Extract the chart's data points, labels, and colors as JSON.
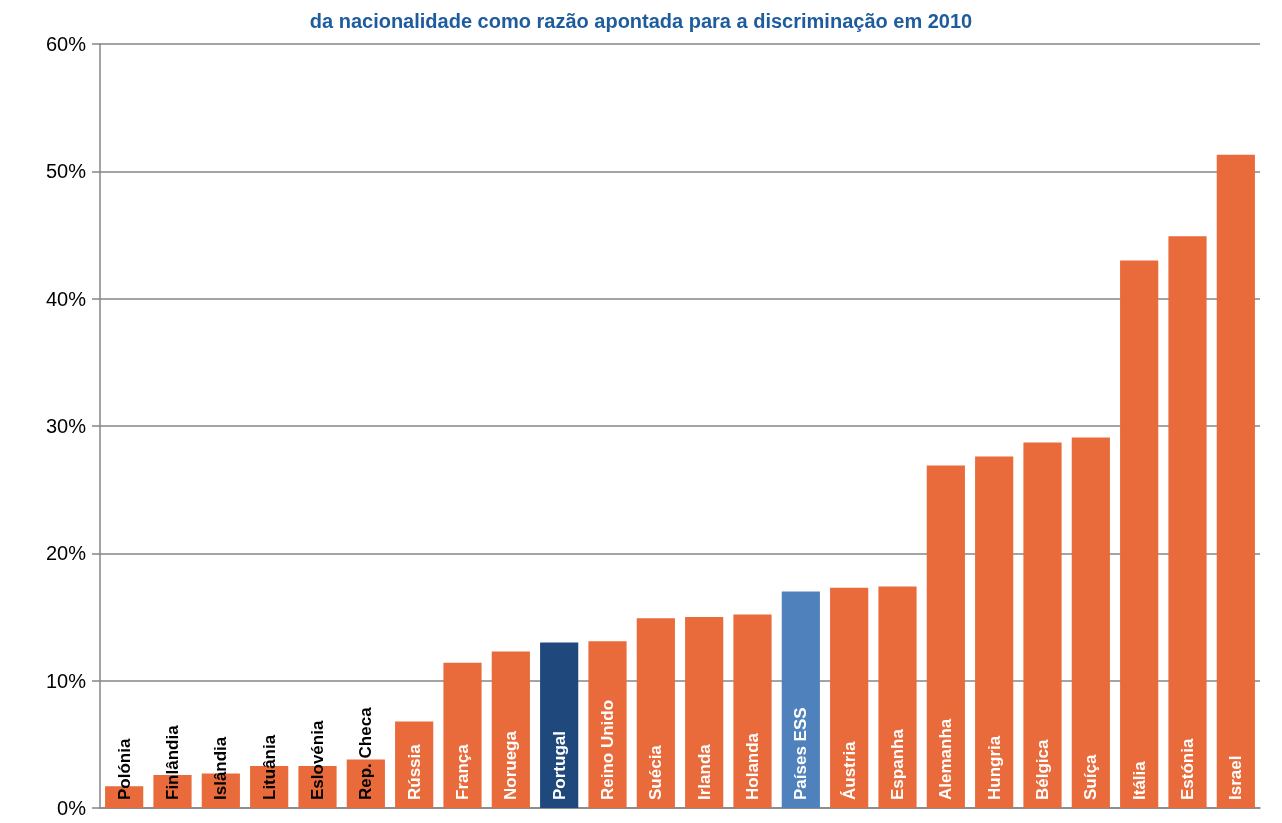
{
  "chart_data": {
    "type": "bar",
    "title": "da nacionalidade como razão apontada para a discriminação em 2010",
    "categories": [
      "Polónia",
      "Finlândia",
      "Islândia",
      "Lituânia",
      "Eslovénia",
      "Rep. Checa",
      "Rússia",
      "França",
      "Noruega",
      "Portugal",
      "Reino Unido",
      "Suécia",
      "Irlanda",
      "Holanda",
      "Países ESS",
      "Áustria",
      "Espanha",
      "Alemanha",
      "Hungria",
      "Bélgica",
      "Suíça",
      "Itália",
      "Estónia",
      "Israel"
    ],
    "values": [
      1.7,
      2.6,
      2.7,
      3.3,
      3.3,
      3.8,
      6.8,
      11.4,
      12.3,
      13.0,
      13.1,
      14.9,
      15.0,
      15.2,
      17.0,
      17.3,
      17.4,
      26.9,
      27.6,
      28.7,
      29.1,
      43.0,
      44.9,
      51.3
    ],
    "colors": [
      "#e96a3a",
      "#e96a3a",
      "#e96a3a",
      "#e96a3a",
      "#e96a3a",
      "#e96a3a",
      "#e96a3a",
      "#e96a3a",
      "#e96a3a",
      "#1f497d",
      "#e96a3a",
      "#e96a3a",
      "#e96a3a",
      "#e96a3a",
      "#4f81bd",
      "#e96a3a",
      "#e96a3a",
      "#e96a3a",
      "#e96a3a",
      "#e96a3a",
      "#e96a3a",
      "#e96a3a",
      "#e96a3a",
      "#e96a3a"
    ],
    "ylim": [
      0,
      60
    ],
    "yticks": [
      {
        "value": 0,
        "label": "0%"
      },
      {
        "value": 10,
        "label": "10%"
      },
      {
        "value": 20,
        "label": "20%"
      },
      {
        "value": 30,
        "label": "30%"
      },
      {
        "value": 40,
        "label": "40%"
      },
      {
        "value": 50,
        "label": "50%"
      },
      {
        "value": 60,
        "label": "60%"
      }
    ],
    "grid": "y",
    "tick_labels": "y"
  }
}
